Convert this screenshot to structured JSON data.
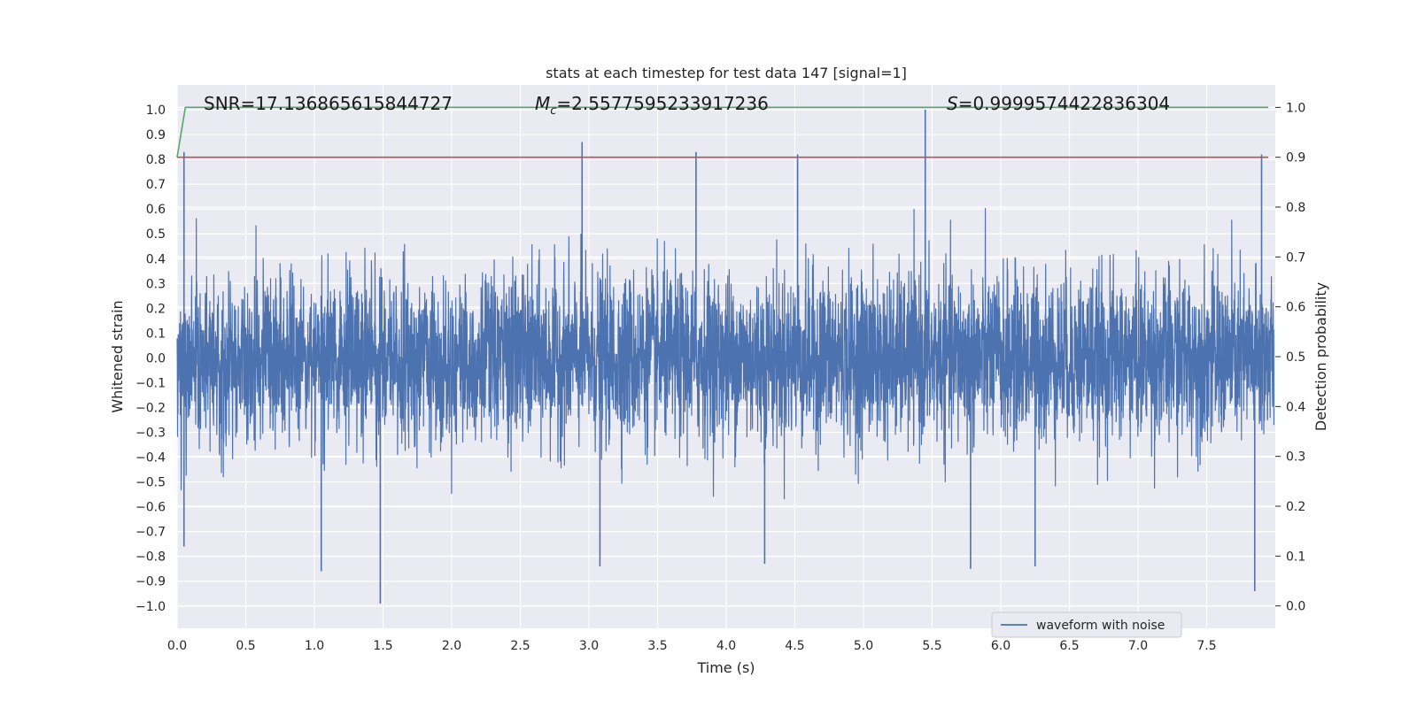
{
  "chart_data": {
    "type": "line",
    "title": "stats at each timestep for test data 147 [signal=1]",
    "xlabel": "Time (s)",
    "ylabel": "Whitened strain",
    "y2label": "Detection probability",
    "xlim": [
      0,
      8
    ],
    "ylim": [
      -1.09,
      1.1
    ],
    "y2lim": [
      -0.045,
      1.045
    ],
    "xticks": [
      0.0,
      0.5,
      1.0,
      1.5,
      2.0,
      2.5,
      3.0,
      3.5,
      4.0,
      4.5,
      5.0,
      5.5,
      6.0,
      6.5,
      7.0,
      7.5
    ],
    "xtick_labels": [
      "0.0",
      "0.5",
      "1.0",
      "1.5",
      "2.0",
      "2.5",
      "3.0",
      "3.5",
      "4.0",
      "4.5",
      "5.0",
      "5.5",
      "6.0",
      "6.5",
      "7.0",
      "7.5"
    ],
    "yticks": [
      1.0,
      0.9,
      0.8,
      0.7,
      0.6,
      0.5,
      0.4,
      0.3,
      0.2,
      0.1,
      0.0,
      -0.1,
      -0.2,
      -0.3,
      -0.4,
      -0.5,
      -0.6,
      -0.7,
      -0.8,
      -0.9,
      -1.0
    ],
    "ytick_labels": [
      "1.0",
      "0.9",
      "0.8",
      "0.7",
      "0.6",
      "0.5",
      "0.4",
      "0.3",
      "0.2",
      "0.1",
      "0.0",
      "−0.1",
      "−0.2",
      "−0.3",
      "−0.4",
      "−0.5",
      "−0.6",
      "−0.7",
      "−0.8",
      "−0.9",
      "−1.0"
    ],
    "y2ticks": [
      1.0,
      0.9,
      0.8,
      0.7,
      0.6,
      0.5,
      0.4,
      0.3,
      0.2,
      0.1,
      0.0
    ],
    "y2tick_labels": [
      "1.0",
      "0.9",
      "0.8",
      "0.7",
      "0.6",
      "0.5",
      "0.4",
      "0.3",
      "0.2",
      "0.1",
      "0.0"
    ],
    "grid": true,
    "legend_position": "bottom-right",
    "annotations": {
      "snr": "SNR=17.136865615844727",
      "mc_symbol": "M",
      "mc_subscript": "c",
      "mc_value": "=2.5577595233917236",
      "s_symbol": "S",
      "s_value": "=0.9999574422836304"
    },
    "series": [
      {
        "name": "waveform with noise",
        "axis": "left",
        "color": "#4c72b0",
        "description": "dense noisy whitened strain oscillating mostly within ±0.4",
        "typical_envelope": 0.4,
        "peaks": [
          {
            "x": 0.05,
            "y": 0.83
          },
          {
            "x": 2.95,
            "y": 0.87
          },
          {
            "x": 3.78,
            "y": 0.83
          },
          {
            "x": 4.52,
            "y": 0.82
          },
          {
            "x": 5.45,
            "y": 1.0
          },
          {
            "x": 7.9,
            "y": 0.82
          }
        ],
        "troughs": [
          {
            "x": 0.05,
            "y": -0.76
          },
          {
            "x": 1.05,
            "y": -0.86
          },
          {
            "x": 1.48,
            "y": -0.99
          },
          {
            "x": 3.08,
            "y": -0.84
          },
          {
            "x": 4.28,
            "y": -0.83
          },
          {
            "x": 5.78,
            "y": -0.85
          },
          {
            "x": 6.25,
            "y": -0.84
          },
          {
            "x": 7.85,
            "y": -0.94
          }
        ]
      },
      {
        "name": "",
        "axis": "right",
        "color": "#55a868",
        "x": [
          0.0,
          0.06,
          7.95
        ],
        "y": [
          0.9,
          1.0,
          1.0
        ]
      },
      {
        "name": "",
        "axis": "right",
        "color": "#c44e52",
        "x": [
          0.0,
          7.95
        ],
        "y": [
          0.9,
          0.9
        ]
      }
    ]
  }
}
